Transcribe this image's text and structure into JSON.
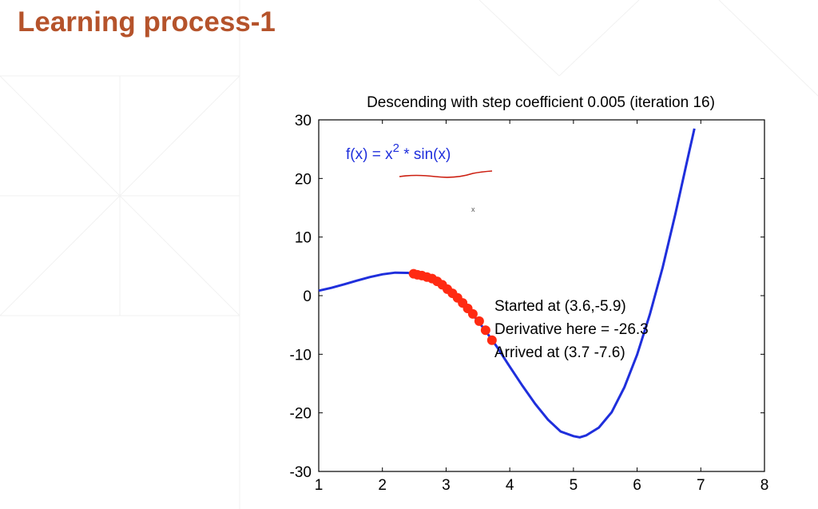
{
  "slide": {
    "title": "Learning process-1"
  },
  "chart_data": {
    "type": "line",
    "title": "Descending with step coefficient 0.005 (iteration 16)",
    "xlabel": "",
    "ylabel": "",
    "xlim": [
      1,
      8
    ],
    "ylim": [
      -30,
      30
    ],
    "xticks": [
      1,
      2,
      3,
      4,
      5,
      6,
      7,
      8
    ],
    "yticks": [
      30,
      20,
      10,
      0,
      -10,
      -20,
      -30
    ],
    "function_label": {
      "base": "f(x) = x",
      "exponent": "2",
      "rest": " * sin(x)"
    },
    "function_points": {
      "x": [
        1.0,
        1.2,
        1.4,
        1.6,
        1.8,
        2.0,
        2.2,
        2.4,
        2.6,
        2.8,
        3.0,
        3.2,
        3.4,
        3.6,
        3.8,
        4.0,
        4.2,
        4.4,
        4.6,
        4.8,
        5.0,
        5.1,
        5.2,
        5.4,
        5.6,
        5.8,
        6.0,
        6.2,
        6.4,
        6.6,
        6.8,
        6.9
      ],
      "y": [
        0.84,
        1.34,
        1.93,
        2.56,
        3.16,
        3.64,
        3.93,
        3.89,
        3.48,
        2.63,
        1.27,
        -0.6,
        -2.96,
        -5.72,
        -8.76,
        -12.11,
        -15.39,
        -18.48,
        -21.17,
        -23.19,
        -23.97,
        -24.18,
        -23.85,
        -22.51,
        -19.89,
        -15.64,
        -10.06,
        -3.2,
        4.78,
        13.91,
        23.69,
        28.52
      ]
    },
    "descent_points": {
      "x": [
        2.49,
        2.55,
        2.62,
        2.7,
        2.78,
        2.86,
        2.94,
        3.02,
        3.1,
        3.18,
        3.26,
        3.34,
        3.42,
        3.52,
        3.62,
        3.72
      ],
      "y": [
        3.74,
        3.57,
        3.42,
        3.17,
        2.91,
        2.43,
        1.85,
        1.1,
        0.4,
        -0.38,
        -1.25,
        -2.18,
        -3.12,
        -4.35,
        -5.9,
        -7.6
      ]
    },
    "annotations": [
      "Started at (3.6,-5.9)",
      "Derivative here = -26.3",
      "Arrived at (3.7 -7.6)"
    ],
    "colors": {
      "function_line": "#1f2fdc",
      "descent_markers": "#ff2a12",
      "function_label": "#1f2fdc",
      "underline": "#cc1e10",
      "title_text": "#b5532b"
    },
    "grid": false
  }
}
